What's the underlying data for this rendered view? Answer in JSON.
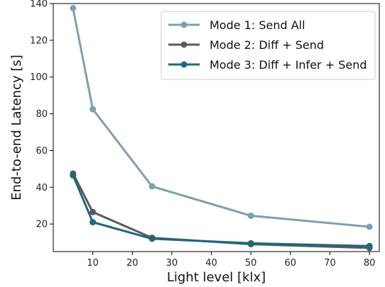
{
  "chart_data": {
    "type": "line",
    "title": "",
    "xlabel": "Light level [klx]",
    "ylabel": "End-to-end Latency [s]",
    "xlim": [
      0,
      82.5
    ],
    "ylim": [
      5,
      140
    ],
    "xticks": [
      10,
      20,
      30,
      40,
      50,
      60,
      70,
      80
    ],
    "yticks": [
      20,
      40,
      60,
      80,
      100,
      120,
      140
    ],
    "grid": false,
    "legend_position": "top-right",
    "x": [
      5,
      10,
      25,
      50,
      80
    ],
    "series": [
      {
        "name": "Mode 1: Send All",
        "values": [
          137.5,
          82.5,
          40.5,
          24.5,
          18.5
        ],
        "color": "#7f9faf"
      },
      {
        "name": "Mode 2: Diff + Send",
        "values": [
          47.5,
          26.5,
          12.5,
          9.0,
          7.0
        ],
        "color": "#5b5a63"
      },
      {
        "name": "Mode 3: Diff + Infer + Send",
        "values": [
          46.5,
          21.0,
          12.0,
          9.5,
          8.0
        ],
        "color": "#1f6878"
      }
    ]
  }
}
